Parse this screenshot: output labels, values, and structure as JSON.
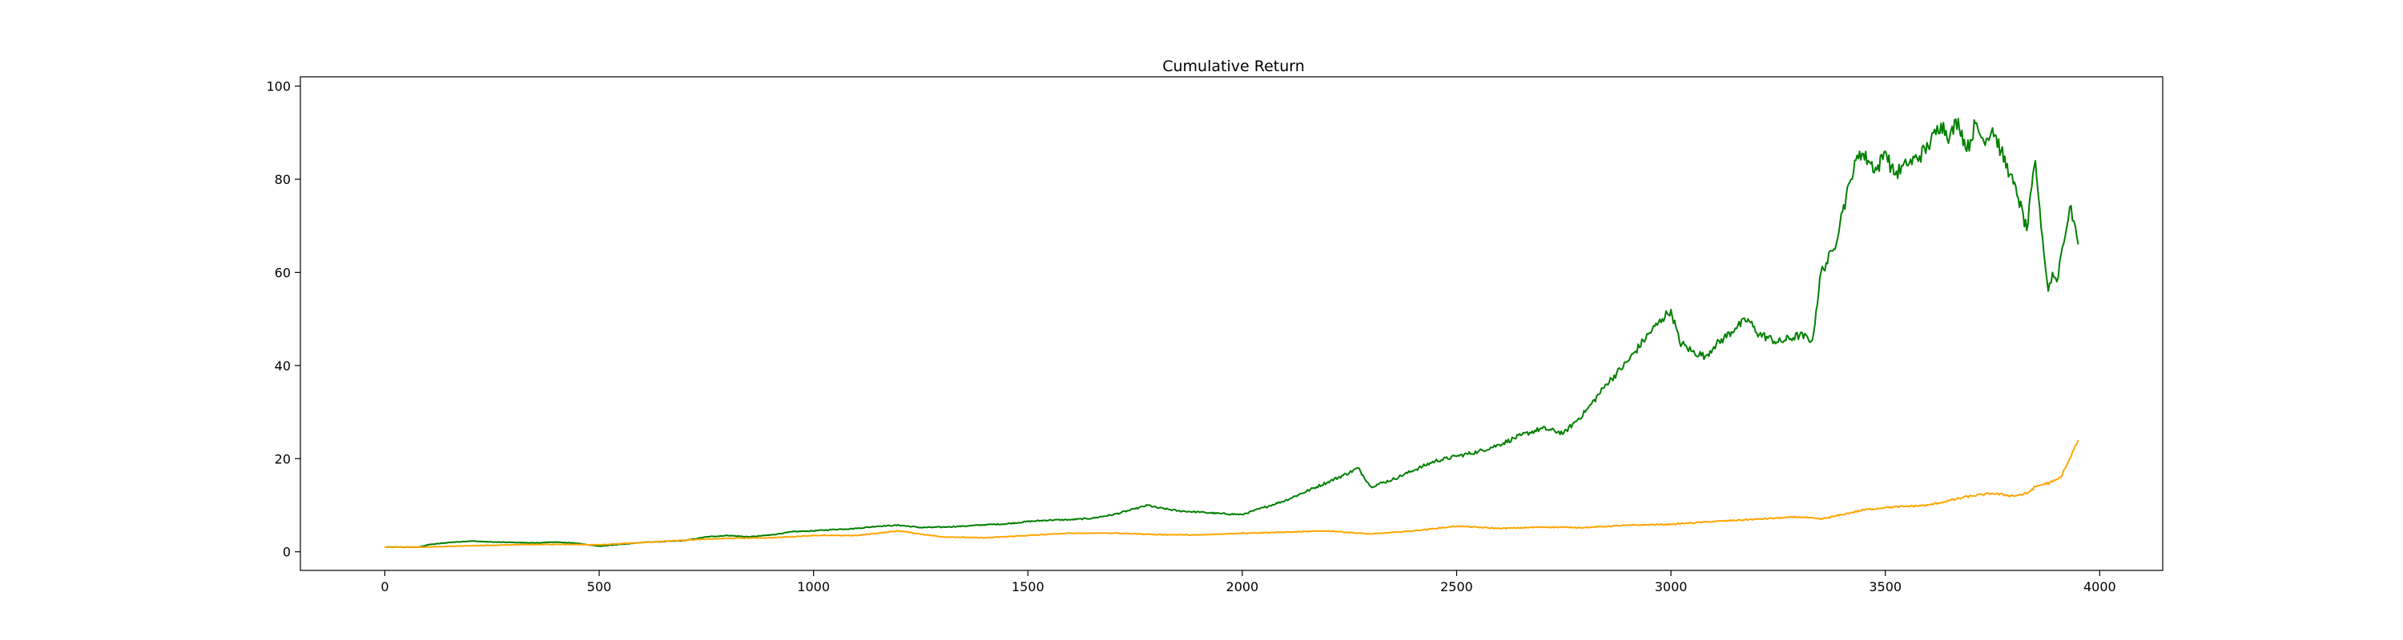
{
  "chart_data": {
    "type": "line",
    "title": "Cumulative Return",
    "xlabel": "",
    "ylabel": "",
    "xlim": [
      -197,
      4147
    ],
    "ylim": [
      -4,
      102
    ],
    "xticks": [
      0,
      500,
      1000,
      1500,
      2000,
      2500,
      3000,
      3500,
      4000
    ],
    "yticks": [
      0,
      20,
      40,
      60,
      80,
      100
    ],
    "grid": false,
    "legend": "none",
    "series": [
      {
        "color": "#008000",
        "x": [
          0,
          80,
          100,
          150,
          200,
          250,
          300,
          350,
          400,
          450,
          500,
          550,
          600,
          650,
          700,
          750,
          800,
          850,
          900,
          950,
          1000,
          1050,
          1100,
          1150,
          1200,
          1250,
          1300,
          1350,
          1400,
          1450,
          1500,
          1550,
          1600,
          1650,
          1700,
          1750,
          1780,
          1800,
          1850,
          1900,
          1950,
          2000,
          2050,
          2100,
          2150,
          2200,
          2250,
          2270,
          2300,
          2350,
          2400,
          2450,
          2500,
          2550,
          2600,
          2650,
          2700,
          2750,
          2800,
          2850,
          2900,
          2950,
          2980,
          3000,
          3020,
          3050,
          3080,
          3100,
          3150,
          3180,
          3200,
          3250,
          3300,
          3330,
          3350,
          3380,
          3400,
          3420,
          3440,
          3460,
          3480,
          3500,
          3520,
          3550,
          3580,
          3600,
          3630,
          3650,
          3670,
          3690,
          3710,
          3730,
          3750,
          3770,
          3790,
          3810,
          3830,
          3850,
          3860,
          3870,
          3880,
          3890,
          3900,
          3910,
          3920,
          3930,
          3940,
          3950
        ],
        "y": [
          1,
          1,
          1.5,
          2,
          2.3,
          2.1,
          2,
          1.9,
          2.1,
          1.8,
          1.2,
          1.6,
          2,
          2.2,
          2.4,
          3.2,
          3.5,
          3.2,
          3.6,
          4.3,
          4.5,
          4.8,
          5,
          5.5,
          5.7,
          5.2,
          5.3,
          5.5,
          5.8,
          6,
          6.5,
          6.8,
          6.9,
          7.2,
          8,
          9.2,
          10,
          9.5,
          8.8,
          8.5,
          8.2,
          8,
          9.5,
          11,
          13,
          15,
          17,
          18,
          14,
          15.5,
          17.5,
          19.5,
          20.5,
          21.5,
          23,
          25,
          26.5,
          25.5,
          30,
          36,
          41,
          47,
          50,
          52,
          45,
          43,
          42,
          44,
          48,
          50,
          47,
          45,
          46.5,
          45.5,
          60,
          65,
          73,
          80,
          86,
          84,
          82,
          86,
          81,
          83,
          85,
          87,
          92,
          89,
          93,
          86,
          92,
          88,
          91,
          86,
          81,
          76,
          69,
          84,
          74,
          64,
          56,
          60,
          58,
          64,
          68,
          74,
          71,
          66
        ]
      },
      {
        "color": "#ffa500",
        "x": [
          0,
          100,
          200,
          300,
          400,
          500,
          600,
          700,
          800,
          900,
          1000,
          1100,
          1200,
          1250,
          1300,
          1400,
          1500,
          1600,
          1700,
          1800,
          1900,
          2000,
          2100,
          2200,
          2300,
          2400,
          2500,
          2600,
          2700,
          2800,
          2900,
          3000,
          3100,
          3200,
          3300,
          3350,
          3400,
          3450,
          3500,
          3600,
          3700,
          3750,
          3800,
          3830,
          3850,
          3870,
          3890,
          3910,
          3920,
          3930,
          3940,
          3950
        ],
        "y": [
          1,
          1,
          1.3,
          1.5,
          1.6,
          1.5,
          2,
          2.5,
          2.9,
          3,
          3.5,
          3.5,
          4.5,
          3.8,
          3.2,
          3,
          3.5,
          4,
          4,
          3.7,
          3.6,
          4,
          4.2,
          4.5,
          3.8,
          4.5,
          5.5,
          5,
          5.3,
          5.2,
          5.7,
          5.9,
          6.5,
          7,
          7.5,
          7,
          8,
          9,
          9.5,
          10,
          12,
          12.5,
          12,
          12.5,
          14,
          14.5,
          15,
          16,
          18,
          20,
          22,
          24
        ]
      }
    ]
  }
}
